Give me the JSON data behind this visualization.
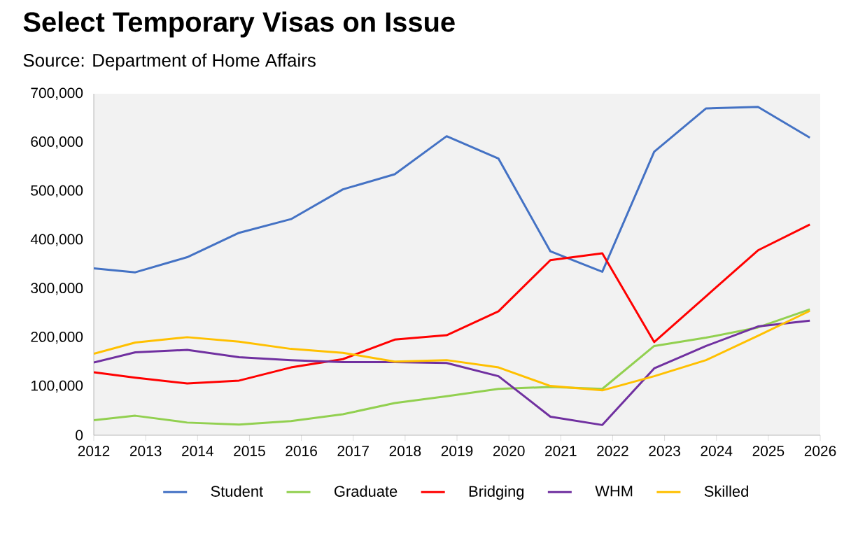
{
  "chart_data": {
    "type": "line",
    "title": "Select Temporary Visas on Issue",
    "subtitle": "Source: Department of Home Affairs",
    "x": [
      2012,
      2012.8,
      2013.8,
      2014.8,
      2015.8,
      2016.8,
      2017.8,
      2018.8,
      2019.8,
      2020.8,
      2021.8,
      2022.8,
      2023.8,
      2024.8,
      2025.8
    ],
    "series": [
      {
        "name": "Student",
        "color": "#4472c4",
        "values": [
          342000,
          334000,
          365000,
          415000,
          443000,
          504000,
          535000,
          613000,
          567000,
          377000,
          335000,
          581000,
          670000,
          673000,
          610000
        ]
      },
      {
        "name": "Graduate",
        "color": "#92d050",
        "values": [
          31000,
          40000,
          26000,
          22000,
          29000,
          43000,
          66000,
          80000,
          95000,
          99000,
          95000,
          183000,
          200000,
          221000,
          258000
        ]
      },
      {
        "name": "Bridging",
        "color": "#ff0000",
        "values": [
          129000,
          118000,
          106000,
          112000,
          139000,
          156000,
          196000,
          205000,
          254000,
          359000,
          373000,
          191000,
          285000,
          379000,
          432000
        ]
      },
      {
        "name": "WHM",
        "color": "#7030a0",
        "values": [
          149000,
          170000,
          175000,
          160000,
          154000,
          150000,
          150000,
          148000,
          121000,
          38000,
          21000,
          137000,
          183000,
          223000,
          235000
        ]
      },
      {
        "name": "Skilled",
        "color": "#ffc000",
        "values": [
          167000,
          190000,
          201000,
          192000,
          177000,
          169000,
          151000,
          154000,
          139000,
          101000,
          92000,
          121000,
          154000,
          204000,
          255000
        ]
      }
    ],
    "xlim": [
      2012,
      2026
    ],
    "xticks": [
      2012,
      2013,
      2014,
      2015,
      2016,
      2017,
      2018,
      2019,
      2020,
      2021,
      2022,
      2023,
      2024,
      2025,
      2026
    ],
    "ylim": [
      0,
      700000
    ],
    "yticks": [
      0,
      {
        "value": 100000,
        "label": "100,000"
      },
      {
        "value": 200000,
        "label": "200,000"
      },
      {
        "value": 300000,
        "label": "300,000"
      },
      {
        "value": 400000,
        "label": "400,000"
      },
      {
        "value": 500000,
        "label": "500,000"
      },
      {
        "value": 600000,
        "label": "600,000"
      },
      {
        "value": 700000,
        "label": "700,000"
      }
    ],
    "grid": false,
    "legend": "bottom",
    "line_style": "solid"
  }
}
